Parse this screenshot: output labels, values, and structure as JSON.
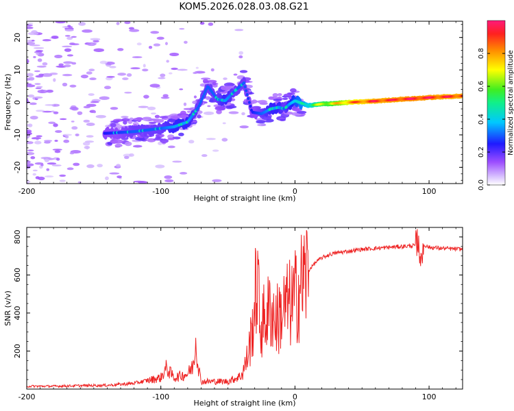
{
  "title": "KOM5.2026.028.03.08.G21",
  "chart_data": [
    {
      "type": "heatmap",
      "name": "spectrogram",
      "xlabel": "Height of straight line (km)",
      "ylabel": "Frequency (Hz)",
      "xlim": [
        -200,
        125
      ],
      "ylim": [
        -25,
        25
      ],
      "xticks": [
        -200,
        -100,
        0,
        100
      ],
      "xtick_labels": [
        "-200",
        "-100",
        "0",
        "100"
      ],
      "yticks": [
        -20,
        -10,
        0,
        10,
        20
      ],
      "ytick_labels": [
        "-20",
        "-10",
        "0",
        "10",
        "20"
      ],
      "colorbar": {
        "label": "Normalized spectral amplitude",
        "range": [
          0,
          1
        ],
        "ticks": [
          0.0,
          0.2,
          0.4,
          0.6,
          0.8
        ],
        "tick_labels": [
          "0.0",
          "0.2",
          "0.4",
          "0.6",
          "0.8"
        ]
      },
      "ridge": {
        "x": [
          -140,
          -120,
          -100,
          -90,
          -80,
          -72,
          -65,
          -58,
          -52,
          -45,
          -38,
          -32,
          -25,
          -18,
          -12,
          -8,
          -4,
          0,
          10,
          20,
          30,
          40,
          50,
          60,
          70,
          80,
          90,
          100,
          110,
          125
        ],
        "frequency": [
          -9.5,
          -9.0,
          -8.0,
          -7.5,
          -6.0,
          -1.5,
          5.0,
          1.0,
          0.5,
          3.5,
          6.0,
          -3.0,
          -3.5,
          -2.0,
          -1.5,
          -2.0,
          -0.5,
          0.5,
          -1.0,
          -0.5,
          -0.3,
          0.0,
          0.2,
          0.4,
          0.7,
          1.0,
          1.2,
          1.5,
          1.7,
          2.0
        ],
        "amplitude": [
          0.25,
          0.3,
          0.3,
          0.35,
          0.35,
          0.3,
          0.3,
          0.3,
          0.35,
          0.3,
          0.3,
          0.25,
          0.3,
          0.35,
          0.35,
          0.3,
          0.35,
          0.4,
          0.5,
          0.65,
          0.7,
          0.8,
          0.85,
          0.9,
          0.9,
          0.92,
          0.93,
          0.92,
          0.9,
          0.9
        ]
      }
    },
    {
      "type": "line",
      "name": "snr",
      "xlabel": "Height of straight line (km)",
      "ylabel": "SNR (v/v)",
      "xlim": [
        -200,
        125
      ],
      "ylim": [
        0,
        850
      ],
      "xticks": [
        -200,
        -100,
        0,
        100
      ],
      "xtick_labels": [
        "-200",
        "-100",
        "0",
        "100"
      ],
      "yticks": [
        200,
        400,
        600,
        800
      ],
      "ytick_labels": [
        "200",
        "400",
        "600",
        "800"
      ],
      "color": "#ee2222",
      "series": [
        {
          "name": "SNR",
          "x": [
            -200,
            -180,
            -160,
            -140,
            -120,
            -110,
            -100,
            -96,
            -90,
            -80,
            -76,
            -74,
            -72,
            -70,
            -60,
            -50,
            -40,
            -36,
            -32,
            -30,
            -28,
            -26,
            -22,
            -18,
            -14,
            -10,
            -6,
            -2,
            0,
            4,
            8,
            12,
            16,
            20,
            25,
            30,
            40,
            50,
            60,
            70,
            80,
            90,
            92,
            94,
            96,
            100,
            110,
            125
          ],
          "values": [
            15,
            15,
            18,
            20,
            30,
            45,
            60,
            110,
            60,
            80,
            120,
            260,
            120,
            40,
            40,
            40,
            70,
            150,
            300,
            450,
            600,
            320,
            380,
            420,
            360,
            400,
            440,
            450,
            480,
            540,
            600,
            640,
            670,
            690,
            705,
            715,
            725,
            735,
            740,
            745,
            750,
            755,
            800,
            640,
            760,
            745,
            740,
            735
          ]
        }
      ]
    }
  ]
}
